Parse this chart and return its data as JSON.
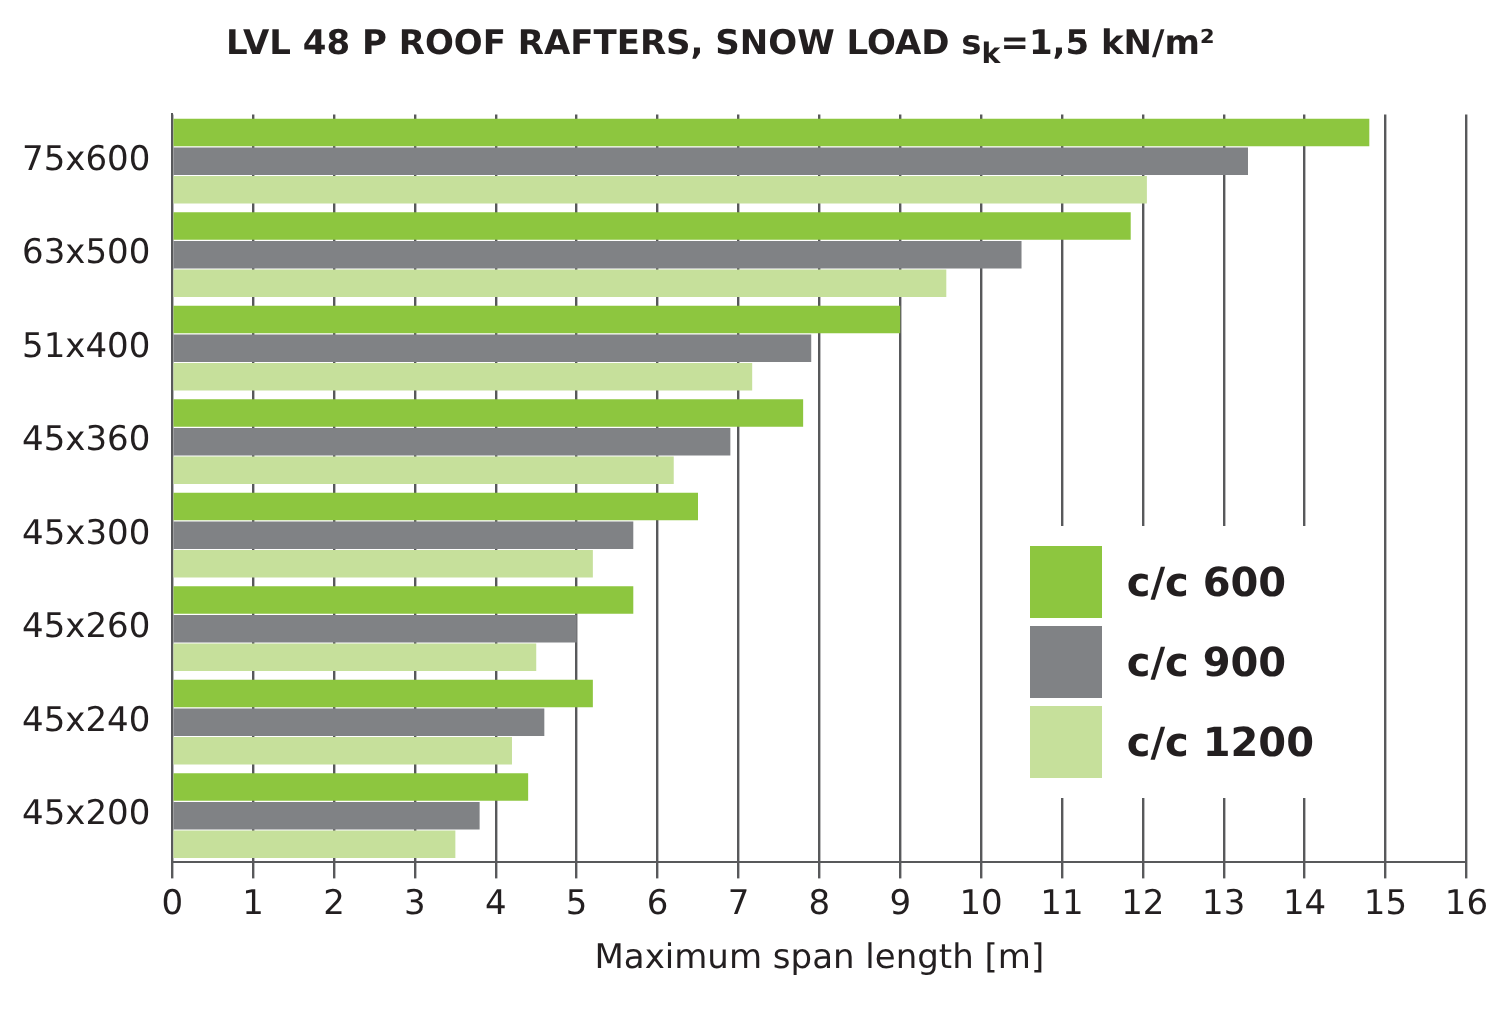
{
  "chart_data": {
    "type": "bar",
    "orientation": "horizontal",
    "title": "LVL 48 P ROOF RAFTERS, SNOW LOAD s$_{k}$=1,5 kN/m²",
    "xlabel": "Maximum span length [m]",
    "categories": [
      "75x600",
      "63x500",
      "51x400",
      "45x360",
      "45x300",
      "45x260",
      "45x240",
      "45x200"
    ],
    "series": [
      {
        "name": "c/c 600",
        "color": "#8dc63f",
        "values": [
          14.8,
          11.85,
          9.0,
          7.8,
          6.5,
          5.7,
          5.2,
          4.4
        ]
      },
      {
        "name": "c/c 900",
        "color": "#808285",
        "values": [
          13.3,
          10.5,
          7.9,
          6.9,
          5.7,
          5.0,
          4.6,
          3.8
        ]
      },
      {
        "name": "c/c 1200",
        "color": "#c6e09b",
        "values": [
          12.05,
          9.57,
          7.17,
          6.2,
          5.2,
          4.5,
          4.2,
          3.5
        ]
      }
    ],
    "xlim": [
      0,
      16
    ],
    "xticks": [
      0,
      1,
      2,
      3,
      4,
      5,
      6,
      7,
      8,
      9,
      10,
      11,
      12,
      13,
      14,
      15,
      16
    ],
    "grid": "x",
    "legend": "right"
  }
}
